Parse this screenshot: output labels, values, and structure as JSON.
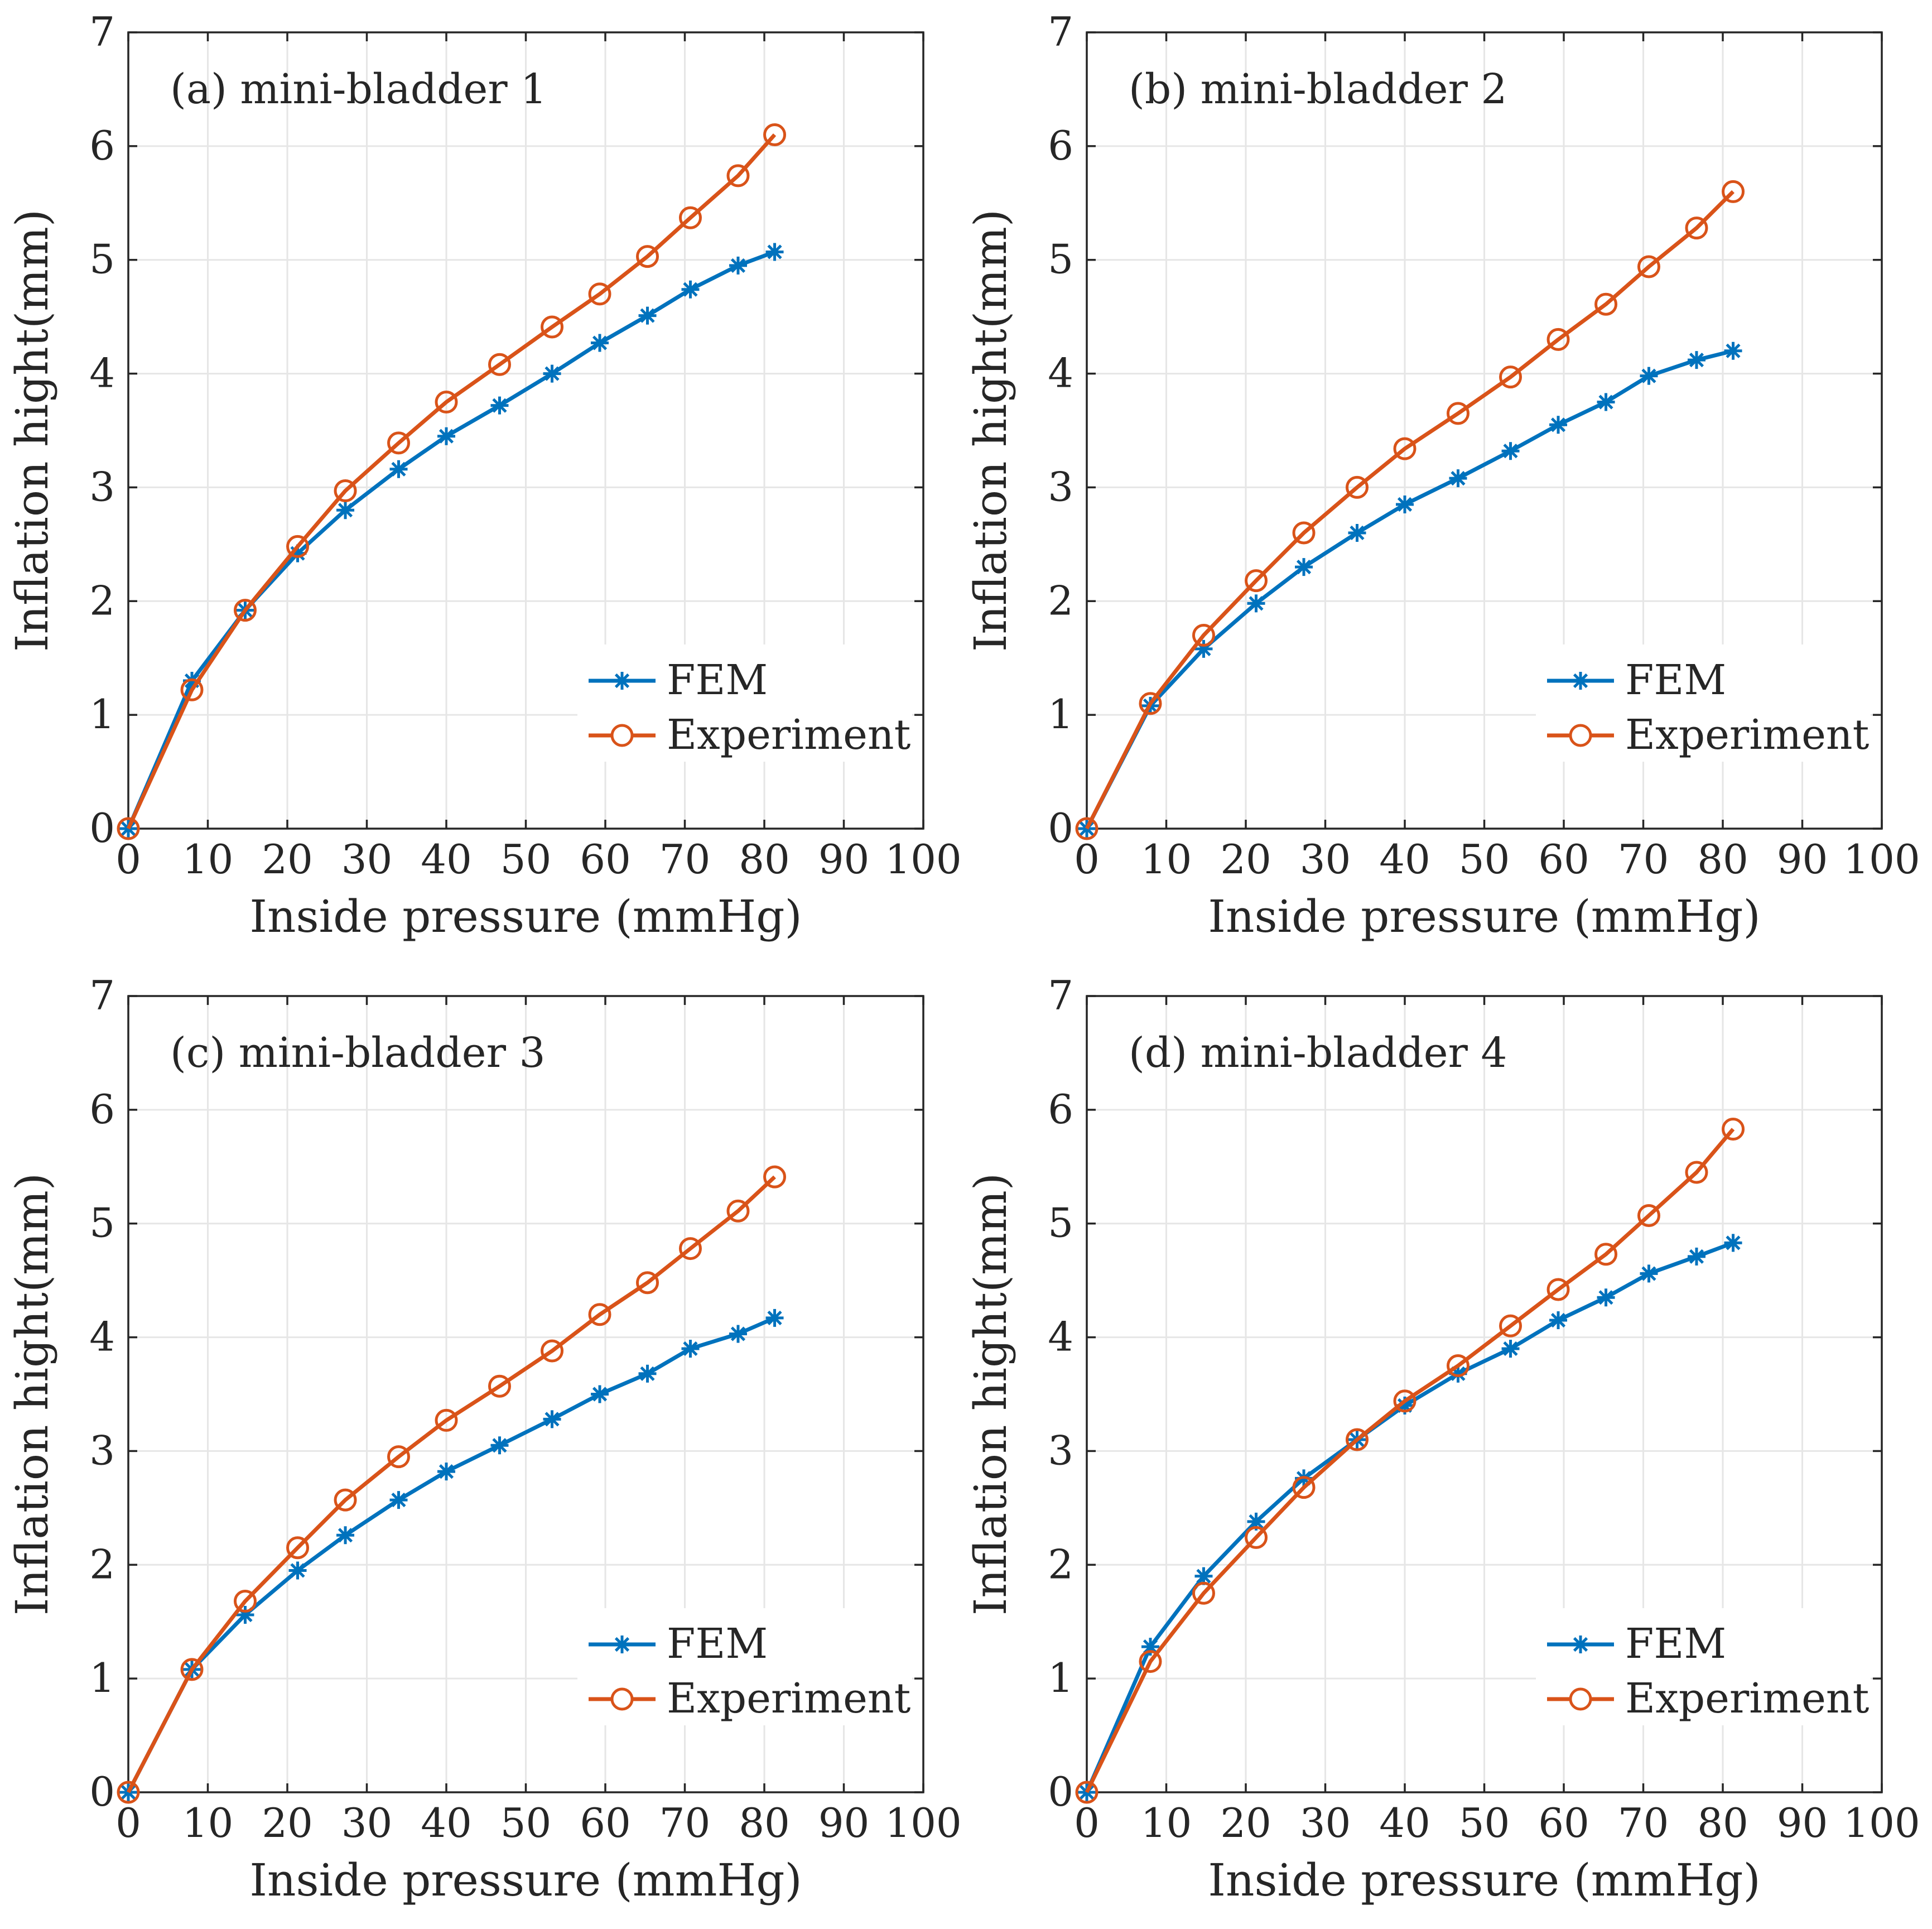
{
  "figure": {
    "xlabel": "Inside pressure (mmHg)",
    "ylabel": "Inflation hight(mm)"
  },
  "chart_data": [
    {
      "type": "line",
      "title": "(a) mini-bladder 1",
      "xlabel": "Inside pressure (mmHg)",
      "ylabel": "Inflation hight(mm)",
      "xlim": [
        0,
        100
      ],
      "ylim": [
        0,
        7
      ],
      "xticks": [
        0,
        10,
        20,
        30,
        40,
        50,
        60,
        70,
        80,
        90,
        100
      ],
      "yticks": [
        0,
        1,
        2,
        3,
        4,
        5,
        6,
        7
      ],
      "grid": true,
      "legend_position": "bottom-right",
      "x": [
        0,
        8,
        14.7,
        21.3,
        27.3,
        34,
        40,
        46.7,
        53.3,
        59.3,
        65.3,
        70.7,
        76.7,
        81.3
      ],
      "series": [
        {
          "name": "FEM",
          "color": "#0072BD",
          "marker": "asterisk",
          "values": [
            0,
            1.3,
            1.92,
            2.42,
            2.8,
            3.16,
            3.45,
            3.72,
            4.0,
            4.27,
            4.51,
            4.74,
            4.95,
            5.07
          ]
        },
        {
          "name": "Experiment",
          "color": "#D95319",
          "marker": "circle",
          "values": [
            0,
            1.22,
            1.92,
            2.48,
            2.97,
            3.39,
            3.75,
            4.08,
            4.41,
            4.7,
            5.03,
            5.37,
            5.74,
            6.1
          ]
        }
      ]
    },
    {
      "type": "line",
      "title": "(b) mini-bladder 2",
      "xlabel": "Inside pressure (mmHg)",
      "ylabel": "Inflation hight(mm)",
      "xlim": [
        0,
        100
      ],
      "ylim": [
        0,
        7
      ],
      "xticks": [
        0,
        10,
        20,
        30,
        40,
        50,
        60,
        70,
        80,
        90,
        100
      ],
      "yticks": [
        0,
        1,
        2,
        3,
        4,
        5,
        6,
        7
      ],
      "grid": true,
      "legend_position": "bottom-right",
      "x": [
        0,
        8,
        14.7,
        21.3,
        27.3,
        34,
        40,
        46.7,
        53.3,
        59.3,
        65.3,
        70.7,
        76.7,
        81.3
      ],
      "series": [
        {
          "name": "FEM",
          "color": "#0072BD",
          "marker": "asterisk",
          "values": [
            0,
            1.08,
            1.58,
            1.98,
            2.3,
            2.6,
            2.85,
            3.08,
            3.32,
            3.55,
            3.75,
            3.98,
            4.12,
            4.2
          ]
        },
        {
          "name": "Experiment",
          "color": "#D95319",
          "marker": "circle",
          "values": [
            0,
            1.1,
            1.7,
            2.18,
            2.6,
            3.0,
            3.34,
            3.65,
            3.97,
            4.3,
            4.61,
            4.94,
            5.28,
            5.6
          ]
        }
      ]
    },
    {
      "type": "line",
      "title": "(c) mini-bladder 3",
      "xlabel": "Inside pressure (mmHg)",
      "ylabel": "Inflation hight(mm)",
      "xlim": [
        0,
        100
      ],
      "ylim": [
        0,
        7
      ],
      "xticks": [
        0,
        10,
        20,
        30,
        40,
        50,
        60,
        70,
        80,
        90,
        100
      ],
      "yticks": [
        0,
        1,
        2,
        3,
        4,
        5,
        6,
        7
      ],
      "grid": true,
      "legend_position": "bottom-right",
      "x": [
        0,
        8,
        14.7,
        21.3,
        27.3,
        34,
        40,
        46.7,
        53.3,
        59.3,
        65.3,
        70.7,
        76.7,
        81.3
      ],
      "series": [
        {
          "name": "FEM",
          "color": "#0072BD",
          "marker": "asterisk",
          "values": [
            0,
            1.08,
            1.56,
            1.95,
            2.26,
            2.57,
            2.82,
            3.05,
            3.28,
            3.5,
            3.68,
            3.9,
            4.03,
            4.17
          ]
        },
        {
          "name": "Experiment",
          "color": "#D95319",
          "marker": "circle",
          "values": [
            0,
            1.08,
            1.68,
            2.15,
            2.57,
            2.95,
            3.27,
            3.57,
            3.88,
            4.2,
            4.48,
            4.78,
            5.11,
            5.41
          ]
        }
      ]
    },
    {
      "type": "line",
      "title": "(d) mini-bladder 4",
      "xlabel": "Inside pressure (mmHg)",
      "ylabel": "Inflation hight(mm)",
      "xlim": [
        0,
        100
      ],
      "ylim": [
        0,
        7
      ],
      "xticks": [
        0,
        10,
        20,
        30,
        40,
        50,
        60,
        70,
        80,
        90,
        100
      ],
      "yticks": [
        0,
        1,
        2,
        3,
        4,
        5,
        6,
        7
      ],
      "grid": true,
      "legend_position": "bottom-right",
      "x": [
        0,
        8,
        14.7,
        21.3,
        27.3,
        34,
        40,
        46.7,
        53.3,
        59.3,
        65.3,
        70.7,
        76.7,
        81.3
      ],
      "series": [
        {
          "name": "FEM",
          "color": "#0072BD",
          "marker": "asterisk",
          "values": [
            0,
            1.28,
            1.9,
            2.38,
            2.76,
            3.1,
            3.4,
            3.68,
            3.9,
            4.15,
            4.35,
            4.56,
            4.71,
            4.83
          ]
        },
        {
          "name": "Experiment",
          "color": "#D95319",
          "marker": "circle",
          "values": [
            0,
            1.15,
            1.75,
            2.24,
            2.68,
            3.1,
            3.44,
            3.75,
            4.1,
            4.42,
            4.73,
            5.07,
            5.45,
            5.83
          ]
        }
      ]
    }
  ]
}
